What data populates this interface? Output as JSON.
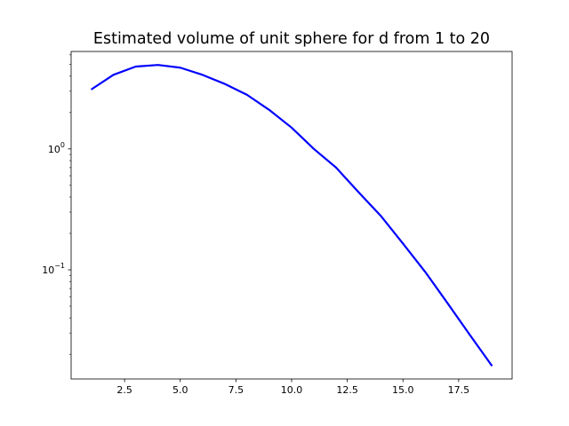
{
  "chart_data": {
    "type": "line",
    "title": "Estimated volume of unit sphere for d from 1 to 20",
    "xlabel": "",
    "ylabel": "",
    "x": [
      1,
      2,
      3,
      4,
      5,
      6,
      7,
      8,
      9,
      10,
      11,
      12,
      13,
      14,
      15,
      16,
      17,
      18,
      19
    ],
    "series": [
      {
        "values": [
          3.1,
          4.1,
          4.8,
          4.95,
          4.7,
          4.1,
          3.45,
          2.8,
          2.1,
          1.5,
          1.0,
          0.7,
          0.44,
          0.28,
          0.165,
          0.096,
          0.053,
          0.029,
          0.016
        ],
        "color": "#0000ff"
      }
    ],
    "xlim": [
      0.1,
      19.9
    ],
    "ylim": [
      0.0125,
      6.4
    ],
    "yscale": "log",
    "xticks": [
      2.5,
      5.0,
      7.5,
      10.0,
      12.5,
      15.0,
      17.5
    ],
    "xtick_labels": [
      "2.5",
      "5.0",
      "7.5",
      "10.0",
      "12.5",
      "15.0",
      "17.5"
    ],
    "yticks_major": [
      0.1,
      1
    ],
    "grid": false,
    "legend": "none"
  }
}
